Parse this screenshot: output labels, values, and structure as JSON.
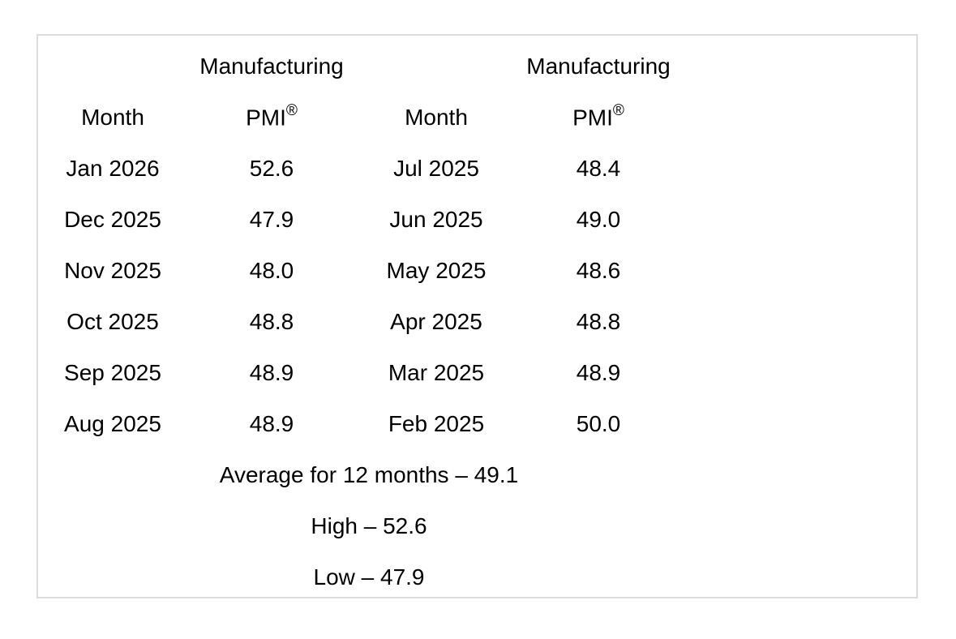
{
  "table": {
    "group_header": "Manufacturing",
    "month_header": "Month",
    "pmi_label": "PMI",
    "pmi_mark": "®",
    "rows": [
      {
        "left_month": "Jan 2026",
        "left_pmi": "52.6",
        "right_month": "Jul 2025",
        "right_pmi": "48.4"
      },
      {
        "left_month": "Dec 2025",
        "left_pmi": "47.9",
        "right_month": "Jun 2025",
        "right_pmi": "49.0"
      },
      {
        "left_month": "Nov 2025",
        "left_pmi": "48.0",
        "right_month": "May 2025",
        "right_pmi": "48.6"
      },
      {
        "left_month": "Oct 2025",
        "left_pmi": "48.8",
        "right_month": "Apr 2025",
        "right_pmi": "48.8"
      },
      {
        "left_month": "Sep 2025",
        "left_pmi": "48.9",
        "right_month": "Mar 2025",
        "right_pmi": "48.9"
      },
      {
        "left_month": "Aug 2025",
        "left_pmi": "48.9",
        "right_month": "Feb 2025",
        "right_pmi": "50.0"
      }
    ],
    "summary_lines": [
      "Average for 12 months – 49.1",
      "High – 52.6",
      "Low – 47.9"
    ]
  },
  "colors": {
    "border": "#dbdbdb",
    "text": "#000000",
    "background": "#ffffff"
  },
  "chart_data": {
    "type": "table",
    "columns": [
      "Month",
      "Manufacturing PMI®",
      "Month",
      "Manufacturing PMI®"
    ],
    "rows": [
      [
        "Jan 2026",
        52.6,
        "Jul 2025",
        48.4
      ],
      [
        "Dec 2025",
        47.9,
        "Jun 2025",
        49.0
      ],
      [
        "Nov 2025",
        48.0,
        "May 2025",
        48.6
      ],
      [
        "Oct 2025",
        48.8,
        "Apr 2025",
        48.8
      ],
      [
        "Sep 2025",
        48.9,
        "Mar 2025",
        48.9
      ],
      [
        "Aug 2025",
        48.9,
        "Feb 2025",
        50.0
      ]
    ],
    "summary": {
      "average_for_12_months": 49.1,
      "high": 52.6,
      "low": 47.9
    },
    "title": "",
    "legend": "none",
    "grid": "off"
  }
}
